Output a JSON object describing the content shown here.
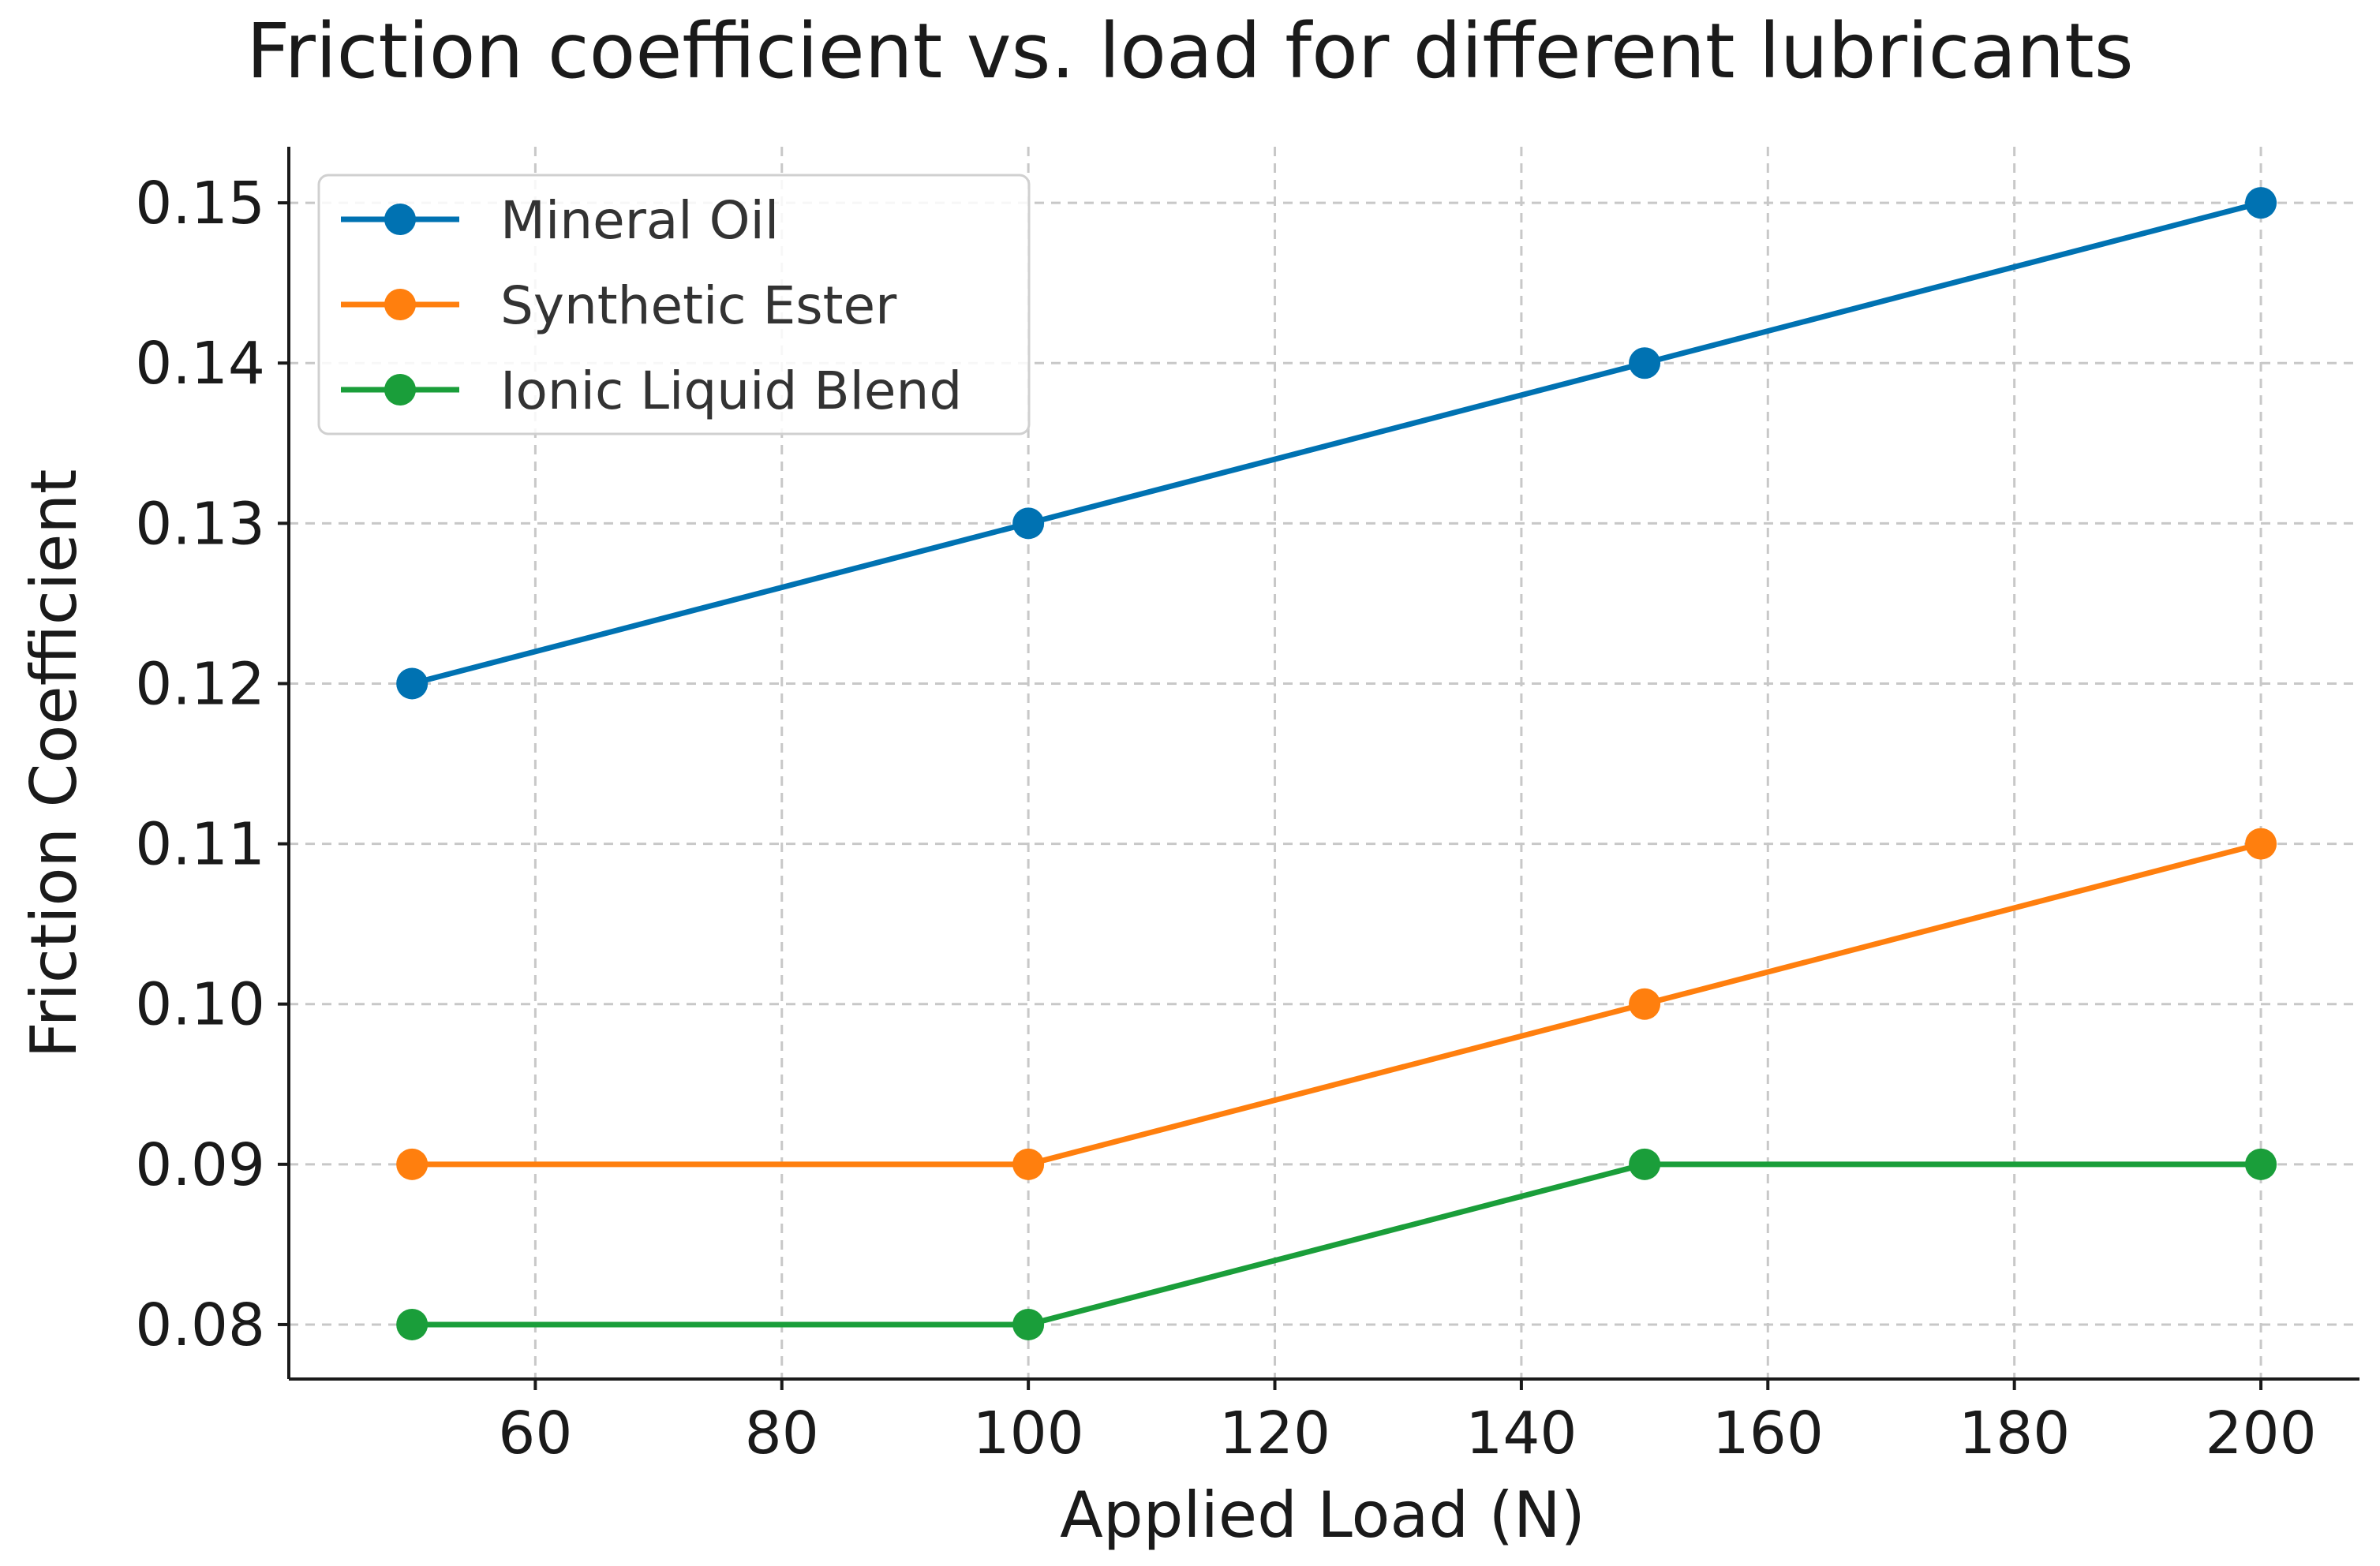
{
  "chart_data": {
    "type": "line",
    "title": "Friction coefficient vs. load for different lubricants",
    "xlabel": "Applied Load (N)",
    "ylabel": "Friction Coefficient",
    "x": [
      50,
      100,
      150,
      200
    ],
    "xlim": [
      40,
      208
    ],
    "ylim": [
      0.0766,
      0.1535
    ],
    "xticks": [
      60,
      80,
      100,
      120,
      140,
      160,
      180,
      200
    ],
    "xtick_labels": [
      "60",
      "80",
      "100",
      "120",
      "140",
      "160",
      "180",
      "200"
    ],
    "yticks": [
      0.08,
      0.09,
      0.1,
      0.11,
      0.12,
      0.13,
      0.14,
      0.15
    ],
    "ytick_labels": [
      "0.08",
      "0.09",
      "0.10",
      "0.11",
      "0.12",
      "0.13",
      "0.14",
      "0.15"
    ],
    "grid": true,
    "legend_position": "top-left",
    "series": [
      {
        "name": "Mineral Oil",
        "color": "#0072b2",
        "values": [
          0.12,
          0.13,
          0.14,
          0.15
        ]
      },
      {
        "name": "Synthetic Ester",
        "color": "#ff7f0e",
        "values": [
          0.09,
          0.09,
          0.1,
          0.11
        ]
      },
      {
        "name": "Ionic Liquid Blend",
        "color": "#1a9e3a",
        "values": [
          0.08,
          0.08,
          0.09,
          0.09
        ]
      }
    ]
  }
}
